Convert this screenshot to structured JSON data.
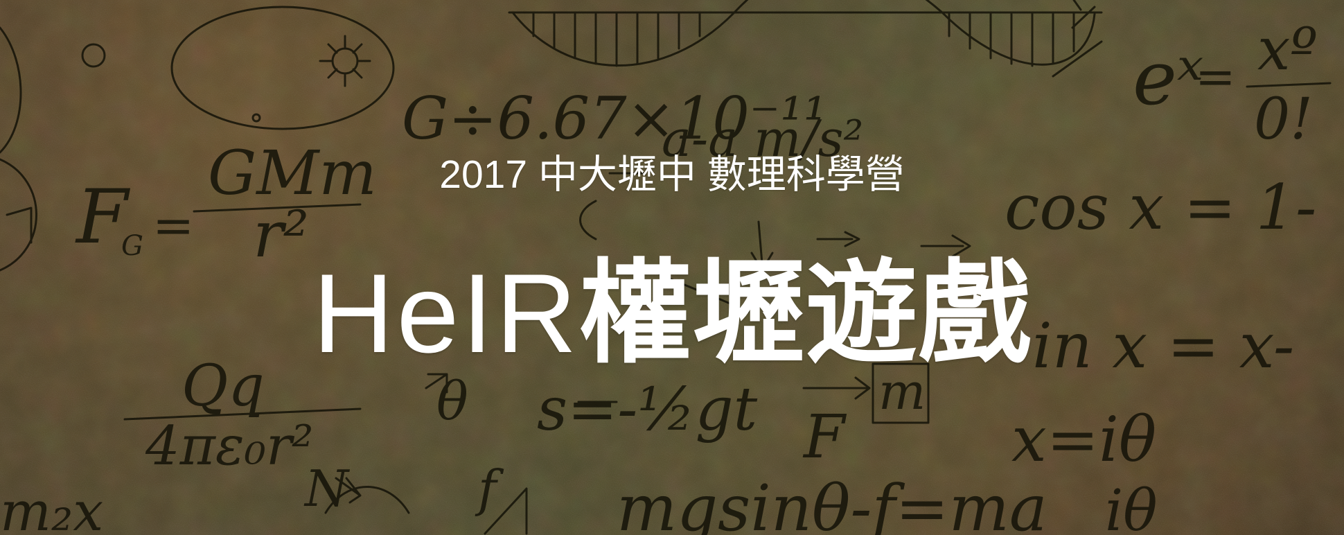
{
  "hero": {
    "subtitle": "2017 中大壢中 數理科學營",
    "title_latin": "HeIR",
    "title_cjk": "權壢遊戲"
  },
  "background": {
    "chalk_formulas": [
      "G÷6.67×10⁻¹¹",
      "GMm",
      "r²",
      "F",
      "G",
      "Qq",
      "4πε₀r²",
      "s=-½gt",
      "F",
      "m",
      "N",
      "f",
      "mgsinθ-f=ma",
      "eˣ",
      "xº",
      "0!",
      "cos x = 1-",
      "sin x = x-",
      "x=iθ",
      "iθ"
    ]
  }
}
